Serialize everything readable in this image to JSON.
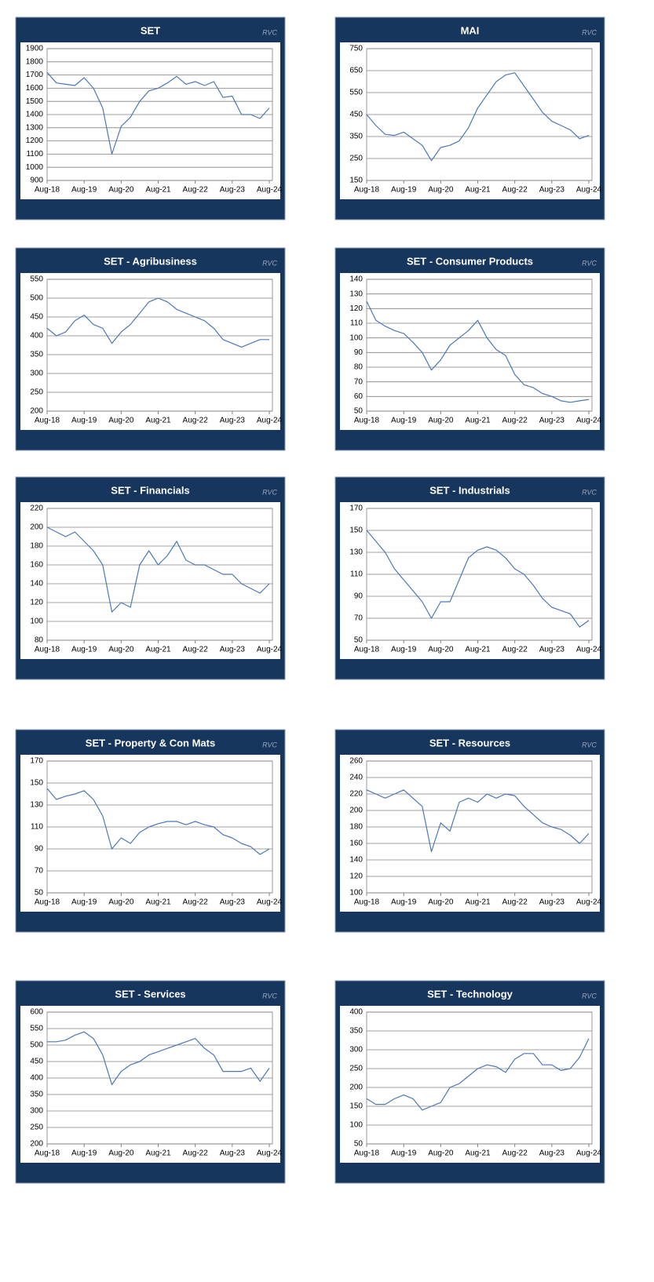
{
  "chart_data": [
    {
      "type": "line",
      "title": "SET",
      "watermark": "RVC",
      "color": "#4a78b8",
      "grid": true,
      "categories": [
        "Aug-18",
        null,
        null,
        null,
        "Aug-19",
        null,
        null,
        null,
        "Aug-20",
        null,
        null,
        null,
        "Aug-21",
        null,
        null,
        null,
        "Aug-22",
        null,
        null,
        null,
        "Aug-23",
        null,
        null,
        null,
        "Aug-24"
      ],
      "values": [
        1720,
        1640,
        1630,
        1620,
        1680,
        1600,
        1450,
        1100,
        1310,
        1380,
        1500,
        1580,
        1600,
        1640,
        1690,
        1630,
        1650,
        1620,
        1650,
        1530,
        1540,
        1400,
        1400,
        1370,
        1450
      ],
      "ylim": [
        900,
        1900
      ],
      "yticks": [
        900,
        1000,
        1100,
        1200,
        1300,
        1400,
        1500,
        1600,
        1700,
        1800,
        1900
      ]
    },
    {
      "type": "line",
      "title": "MAI",
      "watermark": "RVC",
      "color": "#4a78b8",
      "grid": true,
      "categories": [
        "Aug-18",
        null,
        null,
        null,
        "Aug-19",
        null,
        null,
        null,
        "Aug-20",
        null,
        null,
        null,
        "Aug-21",
        null,
        null,
        null,
        "Aug-22",
        null,
        null,
        null,
        "Aug-23",
        null,
        null,
        null,
        "Aug-24"
      ],
      "values": [
        450,
        400,
        360,
        355,
        370,
        340,
        310,
        240,
        300,
        310,
        330,
        390,
        480,
        540,
        600,
        630,
        640,
        580,
        520,
        460,
        420,
        400,
        380,
        340,
        355
      ],
      "ylim": [
        150,
        750
      ],
      "yticks": [
        150,
        250,
        350,
        450,
        550,
        650,
        750
      ]
    },
    {
      "type": "line",
      "title": "SET - Agribusiness",
      "watermark": "RVC",
      "color": "#4a78b8",
      "grid": true,
      "categories": [
        "Aug-18",
        null,
        null,
        null,
        "Aug-19",
        null,
        null,
        null,
        "Aug-20",
        null,
        null,
        null,
        "Aug-21",
        null,
        null,
        null,
        "Aug-22",
        null,
        null,
        null,
        "Aug-23",
        null,
        null,
        null,
        "Aug-24"
      ],
      "values": [
        420,
        400,
        410,
        440,
        455,
        430,
        420,
        380,
        410,
        430,
        460,
        490,
        500,
        490,
        470,
        460,
        450,
        440,
        420,
        390,
        380,
        370,
        380,
        390,
        390
      ],
      "ylim": [
        200,
        550
      ],
      "yticks": [
        200,
        250,
        300,
        350,
        400,
        450,
        500,
        550
      ]
    },
    {
      "type": "line",
      "title": "SET - Consumer Products",
      "watermark": "RVC",
      "color": "#4a78b8",
      "grid": true,
      "categories": [
        "Aug-18",
        null,
        null,
        null,
        "Aug-19",
        null,
        null,
        null,
        "Aug-20",
        null,
        null,
        null,
        "Aug-21",
        null,
        null,
        null,
        "Aug-22",
        null,
        null,
        null,
        "Aug-23",
        null,
        null,
        null,
        "Aug-24"
      ],
      "values": [
        125,
        112,
        108,
        105,
        103,
        97,
        90,
        78,
        85,
        95,
        100,
        105,
        112,
        100,
        92,
        88,
        75,
        68,
        66,
        62,
        60,
        57,
        56,
        57,
        58
      ],
      "ylim": [
        50,
        140
      ],
      "yticks": [
        50,
        60,
        70,
        80,
        90,
        100,
        110,
        120,
        130,
        140
      ]
    },
    {
      "type": "line",
      "title": "SET - Financials",
      "watermark": "RVC",
      "color": "#4a78b8",
      "grid": true,
      "categories": [
        "Aug-18",
        null,
        null,
        null,
        "Aug-19",
        null,
        null,
        null,
        "Aug-20",
        null,
        null,
        null,
        "Aug-21",
        null,
        null,
        null,
        "Aug-22",
        null,
        null,
        null,
        "Aug-23",
        null,
        null,
        null,
        "Aug-24"
      ],
      "values": [
        200,
        195,
        190,
        195,
        185,
        175,
        160,
        110,
        120,
        115,
        160,
        175,
        160,
        170,
        185,
        165,
        160,
        160,
        155,
        150,
        150,
        140,
        135,
        130,
        140
      ],
      "ylim": [
        80,
        220
      ],
      "yticks": [
        80,
        100,
        120,
        140,
        160,
        180,
        200,
        220
      ]
    },
    {
      "type": "line",
      "title": "SET - Industrials",
      "watermark": "RVC",
      "color": "#4a78b8",
      "grid": true,
      "categories": [
        "Aug-18",
        null,
        null,
        null,
        "Aug-19",
        null,
        null,
        null,
        "Aug-20",
        null,
        null,
        null,
        "Aug-21",
        null,
        null,
        null,
        "Aug-22",
        null,
        null,
        null,
        "Aug-23",
        null,
        null,
        null,
        "Aug-24"
      ],
      "values": [
        150,
        140,
        130,
        115,
        105,
        95,
        85,
        70,
        85,
        85,
        105,
        125,
        132,
        135,
        132,
        125,
        115,
        110,
        100,
        88,
        80,
        77,
        74,
        62,
        68
      ],
      "ylim": [
        50,
        170
      ],
      "yticks": [
        50,
        70,
        90,
        110,
        130,
        150,
        170
      ]
    },
    {
      "type": "line",
      "title": "SET - Property & Con Mats",
      "watermark": "RVC",
      "color": "#4a78b8",
      "grid": true,
      "categories": [
        "Aug-18",
        null,
        null,
        null,
        "Aug-19",
        null,
        null,
        null,
        "Aug-20",
        null,
        null,
        null,
        "Aug-21",
        null,
        null,
        null,
        "Aug-22",
        null,
        null,
        null,
        "Aug-23",
        null,
        null,
        null,
        "Aug-24"
      ],
      "values": [
        145,
        135,
        138,
        140,
        143,
        135,
        120,
        90,
        100,
        95,
        105,
        110,
        113,
        115,
        115,
        112,
        115,
        112,
        110,
        103,
        100,
        95,
        92,
        85,
        90
      ],
      "ylim": [
        50,
        170
      ],
      "yticks": [
        50,
        70,
        90,
        110,
        130,
        150,
        170
      ]
    },
    {
      "type": "line",
      "title": "SET - Resources",
      "watermark": "RVC",
      "color": "#4a78b8",
      "grid": true,
      "categories": [
        "Aug-18",
        null,
        null,
        null,
        "Aug-19",
        null,
        null,
        null,
        "Aug-20",
        null,
        null,
        null,
        "Aug-21",
        null,
        null,
        null,
        "Aug-22",
        null,
        null,
        null,
        "Aug-23",
        null,
        null,
        null,
        "Aug-24"
      ],
      "values": [
        225,
        220,
        215,
        220,
        225,
        215,
        205,
        150,
        185,
        175,
        210,
        215,
        210,
        220,
        215,
        220,
        218,
        205,
        195,
        185,
        180,
        177,
        170,
        160,
        172
      ],
      "ylim": [
        100,
        260
      ],
      "yticks": [
        100,
        120,
        140,
        160,
        180,
        200,
        220,
        240,
        260
      ]
    },
    {
      "type": "line",
      "title": "SET - Services",
      "watermark": "RVC",
      "color": "#4a78b8",
      "grid": true,
      "categories": [
        "Aug-18",
        null,
        null,
        null,
        "Aug-19",
        null,
        null,
        null,
        "Aug-20",
        null,
        null,
        null,
        "Aug-21",
        null,
        null,
        null,
        "Aug-22",
        null,
        null,
        null,
        "Aug-23",
        null,
        null,
        null,
        "Aug-24"
      ],
      "values": [
        510,
        510,
        515,
        530,
        540,
        520,
        470,
        380,
        420,
        440,
        450,
        470,
        480,
        490,
        500,
        510,
        520,
        490,
        470,
        420,
        420,
        420,
        430,
        390,
        430
      ],
      "ylim": [
        200,
        600
      ],
      "yticks": [
        200,
        250,
        300,
        350,
        400,
        450,
        500,
        550,
        600
      ]
    },
    {
      "type": "line",
      "title": "SET - Technology",
      "watermark": "RVC",
      "color": "#4a78b8",
      "grid": true,
      "categories": [
        "Aug-18",
        null,
        null,
        null,
        "Aug-19",
        null,
        null,
        null,
        "Aug-20",
        null,
        null,
        null,
        "Aug-21",
        null,
        null,
        null,
        "Aug-22",
        null,
        null,
        null,
        "Aug-23",
        null,
        null,
        null,
        "Aug-24"
      ],
      "values": [
        170,
        155,
        155,
        170,
        180,
        170,
        140,
        150,
        160,
        200,
        210,
        230,
        250,
        260,
        255,
        240,
        275,
        290,
        290,
        260,
        260,
        245,
        250,
        280,
        330
      ],
      "ylim": [
        50,
        400
      ],
      "yticks": [
        50,
        100,
        150,
        200,
        250,
        300,
        350,
        400
      ]
    }
  ]
}
